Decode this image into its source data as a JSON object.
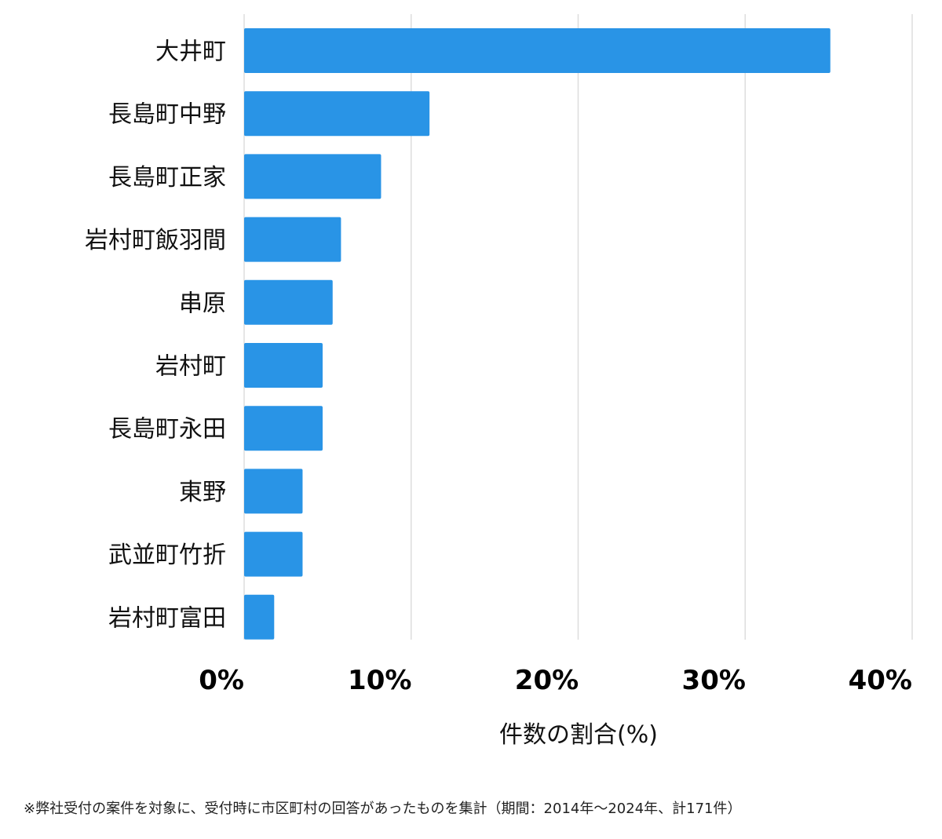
{
  "chart_data": {
    "type": "bar",
    "orientation": "horizontal",
    "categories": [
      "大井町",
      "長島町中野",
      "長島町正家",
      "岩村町飯羽間",
      "串原",
      "岩村町",
      "長島町永田",
      "東野",
      "武並町竹折",
      "岩村町富田"
    ],
    "values": [
      35.1,
      11.1,
      8.2,
      5.8,
      5.3,
      4.7,
      4.7,
      3.5,
      3.5,
      1.8
    ],
    "xlabel": "件数の割合(%)",
    "ylabel": "",
    "xlim": [
      0,
      40
    ],
    "ticks": [
      "0%",
      "10%",
      "20%",
      "30%",
      "40%"
    ],
    "tick_values": [
      0,
      10,
      20,
      30,
      40
    ],
    "grid": true,
    "bar_color": "#2994e6",
    "grid_color": "#dddddd"
  },
  "footnote": "※弊社受付の案件を対象に、受付時に市区町村の回答があったものを集計（期間：2014年〜2024年、計171件）"
}
